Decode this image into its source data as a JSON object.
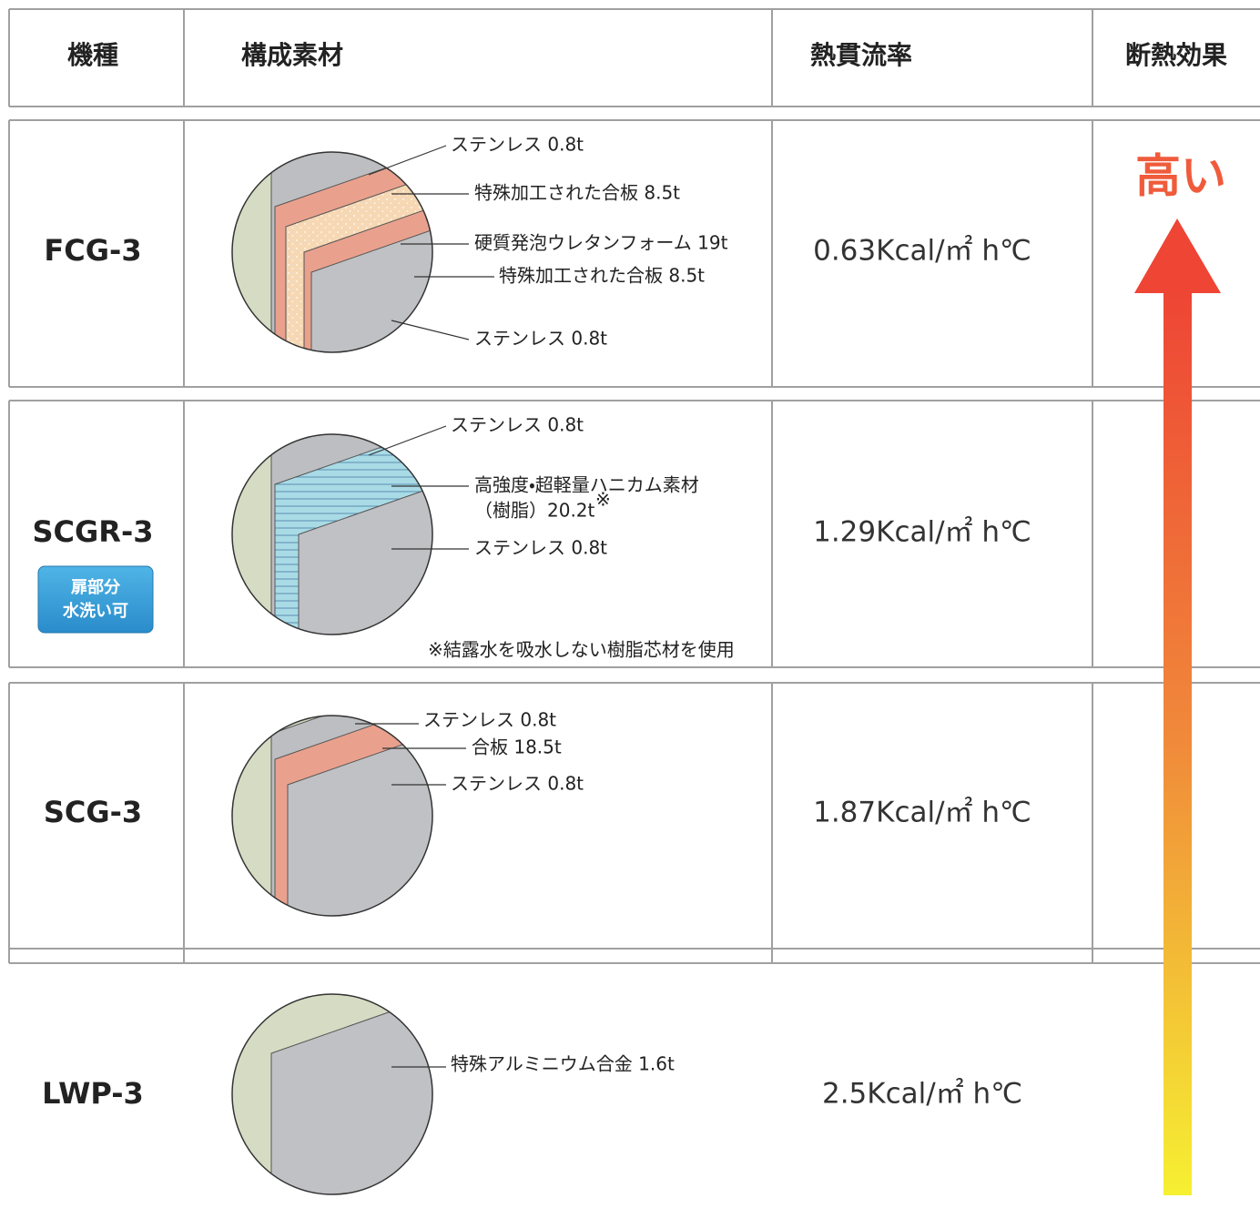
{
  "header": [
    "機種",
    "構成素材",
    "熱貫流率",
    "断熱効果"
  ],
  "rows": [
    {
      "model": "FCG-3",
      "layers": [
        "ステンレス 0.8t",
        "特殊加工された合板 8.5t",
        "硬質発泡ウレタンフォーム 19t",
        "特殊加工された合板 8.5t",
        "ステンレス 0.8t"
      ],
      "value": "0.63Kcal/㎡ h℃"
    },
    {
      "model": "SCGR-3",
      "badge": [
        "扉部分",
        "水洗い可"
      ],
      "layers": [
        "ステンレス 0.8t",
        "高強度・超軽量ハニカム素材",
        "（樹脂）20.2t",
        "ステンレス 0.8t"
      ],
      "layer_mark": "※",
      "note": "※結露水を吸水しない樹脂芯材を使用",
      "value": "1.29Kcal/㎡ h℃"
    },
    {
      "model": "SCG-3",
      "layers": [
        "ステンレス 0.8t",
        "合板 18.5t",
        "ステンレス 0.8t"
      ],
      "value": "1.87Kcal/㎡ h℃"
    },
    {
      "model": "LWP-3",
      "layers": [
        "特殊アルミニウム合金 1.6t"
      ],
      "value": "2.5Kcal/㎡ h℃"
    }
  ],
  "effect_label": "高い"
}
